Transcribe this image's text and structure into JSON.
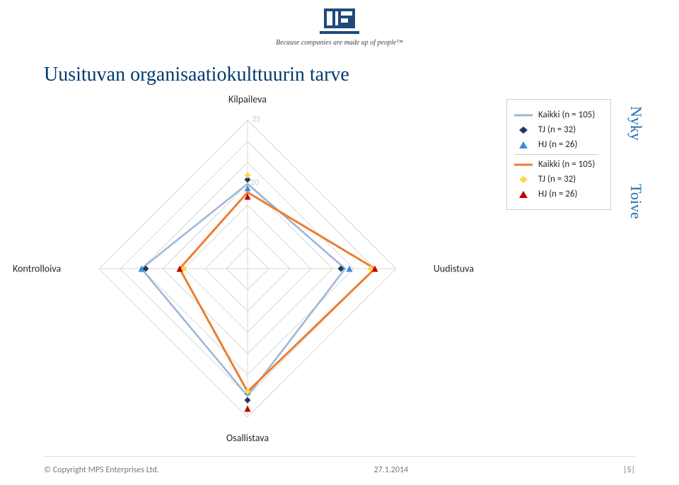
{
  "header": {
    "tagline": "Because companies are made up of people™",
    "logo_text": "MPS",
    "logo_bg": "#1f4a7a",
    "logo_accent": "#ffffff"
  },
  "title": "Uusituvan organisaatiokulttuurin tarve",
  "chart": {
    "type": "radar",
    "axes": [
      "Kilpaileva",
      "Uudistuva",
      "Osallistava",
      "Kontrolloiva"
    ],
    "axis_max": 35,
    "tick_values": [
      35,
      20
    ],
    "grid_color": "#d9d9d9",
    "background_color": "#ffffff",
    "axis_label_fontsize": 14,
    "axis_label_color": "#262626",
    "series": [
      {
        "name": "nyky_kaikki",
        "label": "Kaikki (n = 105)",
        "type": "line",
        "color": "#9bb6d6",
        "width": 2.5,
        "values": [
          20,
          23,
          30,
          25
        ]
      },
      {
        "name": "nyky_tj",
        "label": "TJ (n = 32)",
        "type": "marker",
        "marker": "diamond",
        "color": "#1f3864",
        "size": 9,
        "values": [
          21,
          22,
          31,
          24
        ]
      },
      {
        "name": "nyky_hj",
        "label": "HJ (n = 26)",
        "type": "marker",
        "marker": "triangle",
        "color": "#3f8cd8",
        "size": 9,
        "values": [
          19,
          24,
          29,
          25
        ]
      },
      {
        "name": "toive_kaikki",
        "label": "Kaikki (n = 105)",
        "type": "line",
        "color": "#ed7d31",
        "width": 3,
        "values": [
          18,
          30,
          29,
          16
        ]
      },
      {
        "name": "toive_tj",
        "label": "TJ (n = 32)",
        "type": "marker",
        "marker": "diamond",
        "color": "#ffd54a",
        "size": 9,
        "values": [
          22,
          29,
          29,
          15
        ]
      },
      {
        "name": "toive_hj",
        "label": "HJ (n = 26)",
        "type": "marker",
        "marker": "triangle",
        "color": "#c00000",
        "size": 9,
        "values": [
          17,
          30,
          33,
          16
        ]
      }
    ]
  },
  "legend": {
    "groups": [
      {
        "side": "Nyky",
        "items": [
          {
            "kind": "line",
            "color": "#9bb6d6",
            "label": "Kaikki (n = 105)"
          },
          {
            "kind": "diamond",
            "color": "#1f3864",
            "label": "TJ (n = 32)"
          },
          {
            "kind": "triangle",
            "color": "#3f8cd8",
            "label": "HJ (n = 26)"
          }
        ]
      },
      {
        "side": "Toive",
        "items": [
          {
            "kind": "line",
            "color": "#ed7d31",
            "label": "Kaikki (n = 105)"
          },
          {
            "kind": "diamond",
            "color": "#ffd54a",
            "label": "TJ (n = 32)"
          },
          {
            "kind": "triangle",
            "color": "#c00000",
            "label": "HJ (n = 26)"
          }
        ]
      }
    ],
    "side_color": "#1f6fb2",
    "side_fontsize": 22
  },
  "footer": {
    "copyright": "© Copyright MPS Enterprises Ltd.",
    "date": "27.1.2014",
    "page": "|5|"
  }
}
